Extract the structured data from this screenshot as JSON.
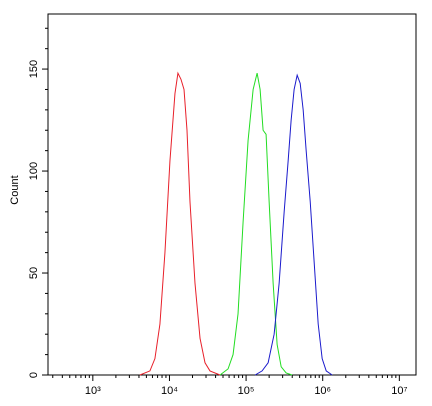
{
  "chart_data": {
    "type": "line",
    "y_label": "Count",
    "xscale": "log",
    "xlim": [
      260,
      16500000
    ],
    "ylim": [
      0,
      177
    ],
    "xticks": [
      {
        "value": 1000,
        "label": "10³"
      },
      {
        "value": 10000,
        "label": "10⁴"
      },
      {
        "value": 100000,
        "label": "10⁵"
      },
      {
        "value": 1000000,
        "label": "10⁶"
      },
      {
        "value": 10000000,
        "label": "10⁷"
      }
    ],
    "xminorticks": [
      300,
      400,
      500,
      600,
      700,
      800,
      900,
      2000,
      3000,
      4000,
      5000,
      6000,
      7000,
      8000,
      9000,
      20000,
      30000,
      40000,
      50000,
      60000,
      70000,
      80000,
      90000,
      200000,
      300000,
      400000,
      500000,
      600000,
      700000,
      800000,
      900000,
      2000000,
      3000000,
      4000000,
      5000000,
      6000000,
      7000000,
      8000000,
      9000000
    ],
    "yticks": [
      0,
      50,
      100,
      150
    ],
    "yminorticks": [
      10,
      20,
      30,
      40,
      60,
      70,
      80,
      90,
      110,
      120,
      130,
      140,
      160,
      170
    ],
    "series": [
      {
        "color": "#e8202a",
        "x": [
          4110,
          5560,
          6460,
          7510,
          8730,
          10150,
          11800,
          12900,
          14130,
          15490,
          16940,
          18530,
          21540,
          25060,
          29110,
          33810,
          45710
        ],
        "values": [
          0,
          2,
          8,
          25,
          60,
          105,
          138,
          148,
          145,
          140,
          120,
          85,
          45,
          18,
          6,
          2,
          0
        ]
      },
      {
        "color": "#22dd22",
        "x": [
          45710,
          58210,
          67610,
          78520,
          91410,
          106200,
          123600,
          139300,
          152400,
          166700,
          182400,
          199900,
          225400,
          254100,
          287100,
          333400,
          399000
        ],
        "values": [
          0,
          3,
          10,
          30,
          75,
          115,
          140,
          148,
          140,
          120,
          118,
          85,
          45,
          15,
          4,
          1,
          0
        ]
      },
      {
        "color": "#1a1acc",
        "x": [
          131200,
          161800,
          194000,
          232300,
          270000,
          314000,
          354000,
          387300,
          423600,
          464100,
          508100,
          555900,
          608200,
          687100,
          774400,
          873000,
          984000,
          1111000,
          1330000
        ],
        "values": [
          0,
          2,
          6,
          20,
          45,
          80,
          105,
          125,
          140,
          147,
          143,
          130,
          110,
          85,
          55,
          25,
          8,
          2,
          0
        ]
      }
    ]
  }
}
